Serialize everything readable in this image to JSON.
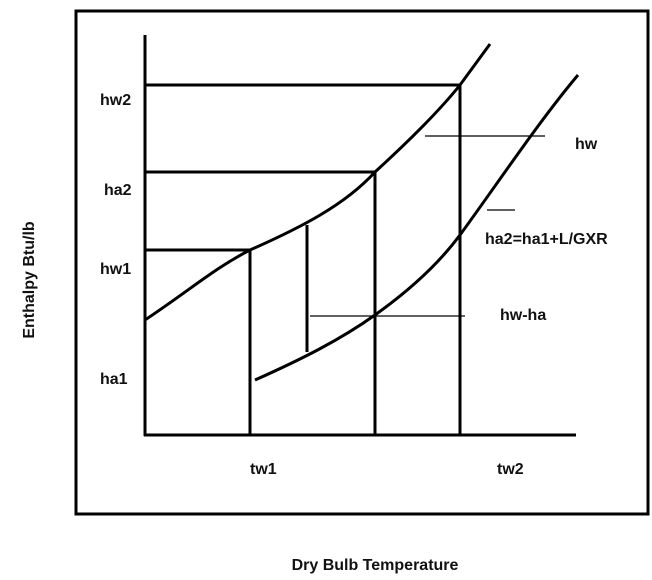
{
  "diagram": {
    "y_axis_label": "Enthalpy Btu/lb",
    "x_axis_label": "Dry Bulb Temperature",
    "y_labels": [
      "hw2",
      "ha2",
      "hw1",
      "ha1"
    ],
    "x_labels": [
      "tw1",
      "tw2"
    ],
    "annotations": [
      "hw",
      "ha2=ha1+L/GXR",
      "hw-ha"
    ]
  }
}
